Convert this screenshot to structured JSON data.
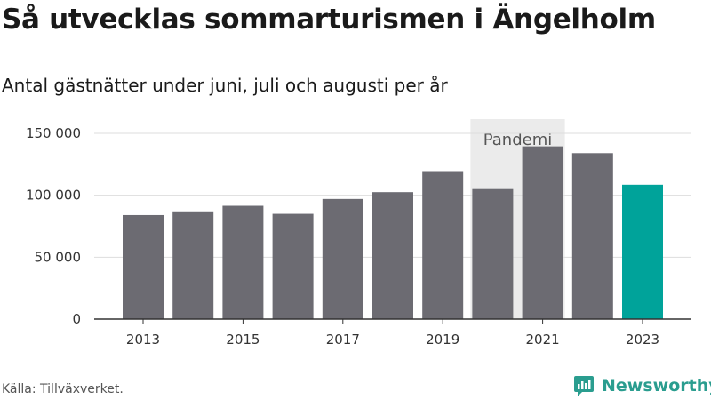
{
  "header": {
    "title": "Så utvecklas sommarturismen i Ängelholm",
    "subtitle": "Antal gästnätter under juni, juli och augusti per år"
  },
  "footer": {
    "source": "Källa: Tillväxverket.",
    "brand": "Newsworthy",
    "brand_icon": "newsworthy-logo-icon"
  },
  "colors": {
    "bar": "#6c6b72",
    "highlight": "#00a39a",
    "annotation_bg": "#ebebeb",
    "grid": "#dddddd",
    "axis": "#333333",
    "brand": "#2a9d8f"
  },
  "chart_data": {
    "type": "bar",
    "categories": [
      "2013",
      "2014",
      "2015",
      "2016",
      "2017",
      "2018",
      "2019",
      "2020",
      "2021",
      "2022",
      "2023"
    ],
    "values": [
      84000,
      87000,
      91500,
      85000,
      97000,
      102500,
      119500,
      105000,
      139500,
      134000,
      108500
    ],
    "highlight_category": "2023",
    "x_tick_labels": [
      "2013",
      "2015",
      "2017",
      "2019",
      "2021",
      "2023"
    ],
    "y_ticks": [
      0,
      50000,
      100000,
      150000
    ],
    "y_tick_labels": [
      "0",
      "50 000",
      "100 000",
      "150 000"
    ],
    "ylim": [
      0,
      150000
    ],
    "grid": true,
    "legend": "none",
    "annotation": {
      "label": "Pandemi",
      "from": "2020",
      "to": "2021"
    }
  }
}
